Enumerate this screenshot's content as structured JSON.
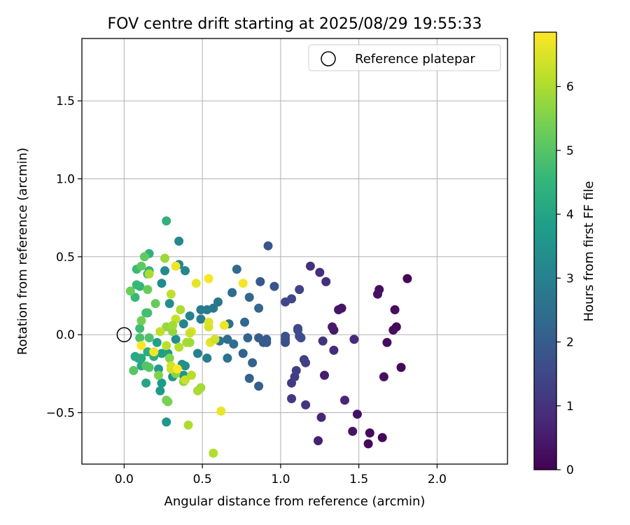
{
  "chart_data": {
    "type": "scatter",
    "title": "FOV centre drift starting at 2025/08/29 19:55:33",
    "xlabel": "Angular distance from reference (arcmin)",
    "ylabel": "Rotation from reference (arcmin)",
    "xlim": [
      -0.27,
      2.45
    ],
    "ylim": [
      -0.83,
      1.9
    ],
    "x_ticks": [
      0.0,
      0.5,
      1.0,
      1.5,
      2.0
    ],
    "x_tick_labels": [
      "0.0",
      "0.5",
      "1.0",
      "1.5",
      "2.0"
    ],
    "y_ticks": [
      -0.5,
      0.0,
      0.5,
      1.0,
      1.5
    ],
    "y_tick_labels": [
      "−0.5",
      "0.0",
      "0.5",
      "1.0",
      "1.5"
    ],
    "grid": true,
    "legend": {
      "position": "top-right",
      "entries": [
        "Reference platepar"
      ]
    },
    "reference_point": {
      "x": 0.0,
      "y": 0.0,
      "marker": "open-circle"
    },
    "colorbar": {
      "label": "Hours from first FF file",
      "min": 0,
      "max": 6.85,
      "ticks": [
        0,
        1,
        2,
        3,
        4,
        5,
        6
      ],
      "tick_labels": [
        "0",
        "1",
        "2",
        "3",
        "4",
        "5",
        "6"
      ],
      "colormap": "viridis"
    },
    "points": [
      [
        1.81,
        0.36,
        0.1
      ],
      [
        1.74,
        0.05,
        0.1
      ],
      [
        1.77,
        -0.21,
        0.15
      ],
      [
        1.65,
        -0.66,
        0.1
      ],
      [
        1.56,
        -0.7,
        0.15
      ],
      [
        1.57,
        -0.63,
        0.2
      ],
      [
        1.68,
        -0.05,
        0.2
      ],
      [
        1.72,
        0.03,
        0.2
      ],
      [
        1.73,
        0.16,
        0.25
      ],
      [
        1.63,
        0.29,
        0.3
      ],
      [
        1.62,
        0.26,
        0.3
      ],
      [
        1.66,
        -0.27,
        0.3
      ],
      [
        1.49,
        -0.51,
        0.3
      ],
      [
        1.46,
        -0.62,
        0.35
      ],
      [
        1.39,
        0.17,
        0.4
      ],
      [
        1.37,
        0.16,
        0.4
      ],
      [
        1.34,
        0.03,
        0.45
      ],
      [
        1.33,
        0.05,
        0.5
      ],
      [
        1.28,
        -0.26,
        0.55
      ],
      [
        1.24,
        -0.68,
        0.6
      ],
      [
        1.26,
        -0.53,
        0.7
      ],
      [
        1.41,
        -0.42,
        0.75
      ],
      [
        1.47,
        -0.03,
        0.8
      ],
      [
        1.34,
        -0.1,
        0.85
      ],
      [
        1.29,
        0.34,
        0.9
      ],
      [
        1.25,
        0.4,
        0.9
      ],
      [
        1.19,
        0.44,
        0.95
      ],
      [
        1.27,
        -0.04,
        1.0
      ],
      [
        1.16,
        -0.45,
        1.1
      ],
      [
        1.07,
        -0.41,
        1.15
      ],
      [
        1.07,
        -0.31,
        1.2
      ],
      [
        1.09,
        -0.27,
        1.25
      ],
      [
        1.1,
        -0.23,
        1.3
      ],
      [
        1.15,
        -0.16,
        1.3
      ],
      [
        1.16,
        -0.18,
        1.35
      ],
      [
        1.12,
        0.29,
        1.4
      ],
      [
        1.07,
        0.23,
        1.45
      ],
      [
        1.03,
        0.21,
        1.5
      ],
      [
        1.11,
        0.04,
        1.55
      ],
      [
        1.11,
        0.03,
        1.55
      ],
      [
        1.12,
        -0.01,
        1.6
      ],
      [
        1.13,
        -0.02,
        1.6
      ],
      [
        1.03,
        -0.03,
        1.65
      ],
      [
        1.03,
        -0.05,
        1.7
      ],
      [
        1.03,
        -0.01,
        1.75
      ],
      [
        0.96,
        0.31,
        1.8
      ],
      [
        0.92,
        0.57,
        1.85
      ],
      [
        0.87,
        0.34,
        1.9
      ],
      [
        0.91,
        -0.05,
        1.9
      ],
      [
        0.89,
        -0.05,
        1.95
      ],
      [
        0.91,
        -0.03,
        2.0
      ],
      [
        0.86,
        -0.02,
        2.05
      ],
      [
        0.86,
        -0.33,
        2.05
      ],
      [
        0.8,
        -0.28,
        2.1
      ],
      [
        0.82,
        -0.18,
        2.15
      ],
      [
        0.76,
        -0.12,
        2.15
      ],
      [
        0.79,
        -0.02,
        2.2
      ],
      [
        0.77,
        0.08,
        2.25
      ],
      [
        0.86,
        0.17,
        2.25
      ],
      [
        0.8,
        0.24,
        2.3
      ],
      [
        0.72,
        0.42,
        2.35
      ],
      [
        0.69,
        0.27,
        2.4
      ],
      [
        0.7,
        -0.06,
        2.45
      ],
      [
        0.66,
        -0.03,
        2.5
      ],
      [
        0.67,
        0.07,
        2.55
      ],
      [
        0.66,
        -0.15,
        2.6
      ],
      [
        0.61,
        -0.04,
        2.65
      ],
      [
        0.6,
        0.21,
        2.7
      ],
      [
        0.57,
        0.17,
        2.75
      ],
      [
        0.53,
        0.16,
        2.8
      ],
      [
        0.49,
        0.16,
        2.85
      ],
      [
        0.49,
        0.1,
        2.9
      ],
      [
        0.53,
        -0.15,
        2.95
      ],
      [
        0.47,
        -0.12,
        3.0
      ],
      [
        0.42,
        0.12,
        3.05
      ],
      [
        0.38,
        0.07,
        3.1
      ],
      [
        0.35,
        0.45,
        3.1
      ],
      [
        0.39,
        0.41,
        3.15
      ],
      [
        0.35,
        0.6,
        3.2
      ],
      [
        0.26,
        0.41,
        3.25
      ],
      [
        0.24,
        0.33,
        3.3
      ],
      [
        0.29,
        0.2,
        3.35
      ],
      [
        0.33,
        -0.03,
        3.4
      ],
      [
        0.39,
        -0.2,
        3.4
      ],
      [
        0.37,
        -0.19,
        3.45
      ],
      [
        0.38,
        -0.26,
        3.5
      ],
      [
        0.31,
        -0.27,
        3.55
      ],
      [
        0.27,
        -0.56,
        3.6
      ],
      [
        0.23,
        -0.36,
        3.65
      ],
      [
        0.24,
        -0.31,
        3.7
      ],
      [
        0.22,
        -0.22,
        3.75
      ],
      [
        0.28,
        -0.12,
        3.8
      ],
      [
        0.24,
        -0.12,
        3.85
      ],
      [
        0.21,
        -0.05,
        3.9
      ],
      [
        0.14,
        -0.31,
        4.0
      ],
      [
        0.11,
        -0.2,
        4.05
      ],
      [
        0.09,
        -0.15,
        4.1
      ],
      [
        0.07,
        -0.14,
        4.15
      ],
      [
        0.11,
        -0.15,
        4.2
      ],
      [
        0.15,
        -0.11,
        4.25
      ],
      [
        0.19,
        -0.14,
        4.3
      ],
      [
        0.27,
        0.73,
        4.35
      ],
      [
        0.16,
        0.52,
        4.4
      ],
      [
        0.16,
        0.41,
        4.45
      ],
      [
        0.15,
        0.39,
        4.5
      ],
      [
        0.1,
        0.31,
        4.55
      ],
      [
        0.08,
        0.32,
        4.6
      ],
      [
        0.07,
        0.24,
        4.6
      ],
      [
        0.08,
        0.42,
        4.65
      ],
      [
        0.1,
        0.04,
        4.7
      ],
      [
        0.14,
        0.14,
        4.75
      ],
      [
        0.15,
        0.14,
        4.8
      ],
      [
        0.1,
        -0.02,
        4.85
      ],
      [
        0.16,
        -0.02,
        4.9
      ],
      [
        0.14,
        -0.2,
        4.95
      ],
      [
        0.16,
        -0.21,
        5.0
      ],
      [
        0.06,
        -0.23,
        5.05
      ],
      [
        0.11,
        0.44,
        5.1
      ],
      [
        0.13,
        0.5,
        5.15
      ],
      [
        0.2,
        0.2,
        5.2
      ],
      [
        0.15,
        0.29,
        5.25
      ],
      [
        0.04,
        0.28,
        5.3
      ],
      [
        0.11,
        0.09,
        5.35
      ],
      [
        0.27,
        -0.42,
        5.4
      ],
      [
        0.28,
        -0.43,
        5.45
      ],
      [
        0.22,
        -0.26,
        5.5
      ],
      [
        0.29,
        -0.15,
        5.55
      ],
      [
        0.33,
        -0.25,
        5.6
      ],
      [
        0.38,
        -0.3,
        5.65
      ],
      [
        0.31,
        0.02,
        5.7
      ],
      [
        0.27,
        0.05,
        5.75
      ],
      [
        0.26,
        0.49,
        5.8
      ],
      [
        0.42,
        -0.05,
        5.85
      ],
      [
        0.49,
        -0.34,
        5.9
      ],
      [
        0.47,
        -0.36,
        5.95
      ],
      [
        0.41,
        -0.58,
        6.0
      ],
      [
        0.57,
        -0.76,
        6.05
      ],
      [
        0.35,
        -0.08,
        6.1
      ],
      [
        0.27,
        -0.07,
        6.15
      ],
      [
        0.23,
        0.02,
        6.2
      ],
      [
        0.33,
        0.1,
        6.25
      ],
      [
        0.39,
        -0.29,
        6.3
      ],
      [
        0.3,
        -0.22,
        6.35
      ],
      [
        0.3,
        -0.2,
        6.4
      ],
      [
        0.54,
        0.05,
        6.45
      ],
      [
        0.54,
        0.08,
        6.5
      ],
      [
        0.43,
        0.02,
        6.55
      ],
      [
        0.55,
        -0.05,
        6.6
      ],
      [
        0.62,
        -0.49,
        6.65
      ],
      [
        0.64,
        0.06,
        6.7
      ],
      [
        0.76,
        0.33,
        6.75
      ],
      [
        0.54,
        0.36,
        6.8
      ],
      [
        0.46,
        0.33,
        6.6
      ],
      [
        0.33,
        0.44,
        6.7
      ],
      [
        0.19,
        -0.11,
        6.75
      ],
      [
        0.3,
        0.26,
        6.2
      ],
      [
        0.36,
        0.16,
        6.0
      ],
      [
        0.11,
        -0.07,
        6.8
      ],
      [
        0.42,
        0.01,
        6.3
      ],
      [
        0.58,
        -0.03,
        6.4
      ],
      [
        0.43,
        -0.26,
        6.1
      ],
      [
        0.16,
        0.39,
        6.0
      ],
      [
        0.34,
        -0.22,
        6.85
      ],
      [
        0.31,
        0.06,
        5.9
      ],
      [
        0.4,
        -0.05,
        5.9
      ]
    ]
  }
}
